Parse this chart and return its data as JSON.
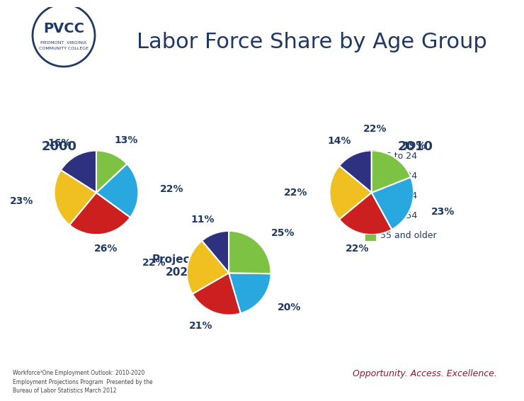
{
  "title": "Labor Force Share by Age Group",
  "background_color": "#FFFFFF",
  "banner_color": "#8B1A2B",
  "categories": [
    "16 to 24",
    "25 to 34",
    "35 to 44",
    "45 to 54",
    "55 and older"
  ],
  "colors": [
    "#2E3180",
    "#F0C020",
    "#CC1F1F",
    "#29A8E0",
    "#7DC242"
  ],
  "pie_2000": {
    "label": "2000",
    "values": [
      16,
      23,
      26,
      22,
      13
    ],
    "startangle": 90
  },
  "pie_2010": {
    "label": "2010",
    "values": [
      14,
      22,
      22,
      23,
      19
    ],
    "startangle": 90
  },
  "pie_2020": {
    "label": "Projected\n2020",
    "values": [
      11,
      22,
      21,
      20,
      25
    ],
    "startangle": 90
  },
  "footer_text": "Workforce³One Employment Outlook: 2010-2020\nEmployment Projections Program  Presented by the\nBureau of Labor Statistics March 2012",
  "tagline": "Opportunity. Access. Excellence.",
  "title_color": "#1F3864",
  "label_color": "#1F3864",
  "legend_22pct": "22%",
  "label_fontsize": 10,
  "title_fontsize": 22
}
